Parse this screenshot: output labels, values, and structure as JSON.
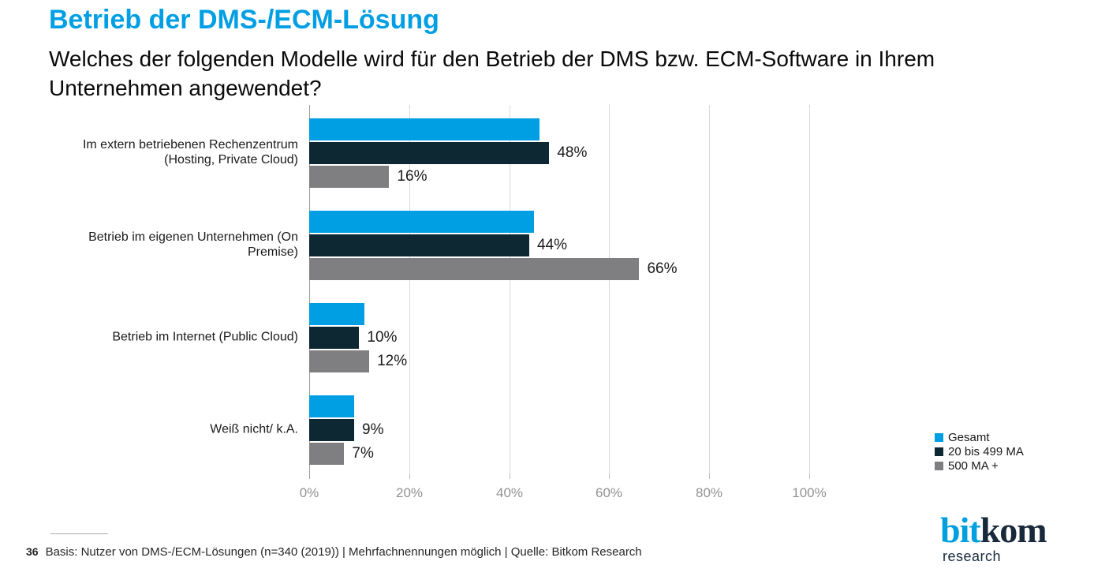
{
  "theme": {
    "accent": "#009FE3",
    "text": "#1A1A1A",
    "grid": "#D9D9D9",
    "axis": "#9E9E9E",
    "tick-text": "#919191",
    "logo-blue": "#00A0DF",
    "logo-dark": "#17293A"
  },
  "header": {
    "title": "Betrieb der DMS-/ECM-Lösung",
    "subtitle": "Welches der folgenden Modelle wird für den Betrieb der DMS bzw. ECM-Software in Ihrem Unternehmen angewendet?"
  },
  "footer": {
    "page_number": "36",
    "note": "Basis: Nutzer von DMS-/ECM-Lösungen (n=340 (2019)) | Mehrfachnennungen möglich | Quelle: Bitkom Research"
  },
  "logo": {
    "word_blue": "bit",
    "word_dark": "kom",
    "subtext": "research"
  },
  "chart_data": {
    "type": "bar",
    "orientation": "horizontal",
    "title": "Betrieb der DMS-/ECM-Lösung",
    "xlabel": "",
    "ylabel": "",
    "xlim": [
      0,
      100
    ],
    "x_ticks": [
      "0%",
      "20%",
      "40%",
      "60%",
      "80%",
      "100%"
    ],
    "grid": "vertical gridlines, light gray",
    "legend_position": "right-bottom",
    "categories": [
      "Im extern betriebenen Rechenzentrum (Hosting, Private Cloud)",
      "Betrieb im eigenen Unternehmen (On Premise)",
      "Betrieb im Internet (Public Cloud)",
      "Weiß nicht/ k.A."
    ],
    "series": [
      {
        "name": "Gesamt",
        "color": "#009FE3",
        "values": [
          46,
          45,
          11,
          9
        ],
        "labels": [
          "",
          "",
          "",
          ""
        ]
      },
      {
        "name": "20 bis 499 MA",
        "color": "#0D2733",
        "values": [
          48,
          44,
          10,
          9
        ],
        "labels": [
          "48%",
          "44%",
          "10%",
          "9%"
        ]
      },
      {
        "name": "500 MA +",
        "color": "#7F7F82",
        "values": [
          16,
          66,
          12,
          7
        ],
        "labels": [
          "16%",
          "66%",
          "12%",
          "7%"
        ]
      }
    ]
  }
}
